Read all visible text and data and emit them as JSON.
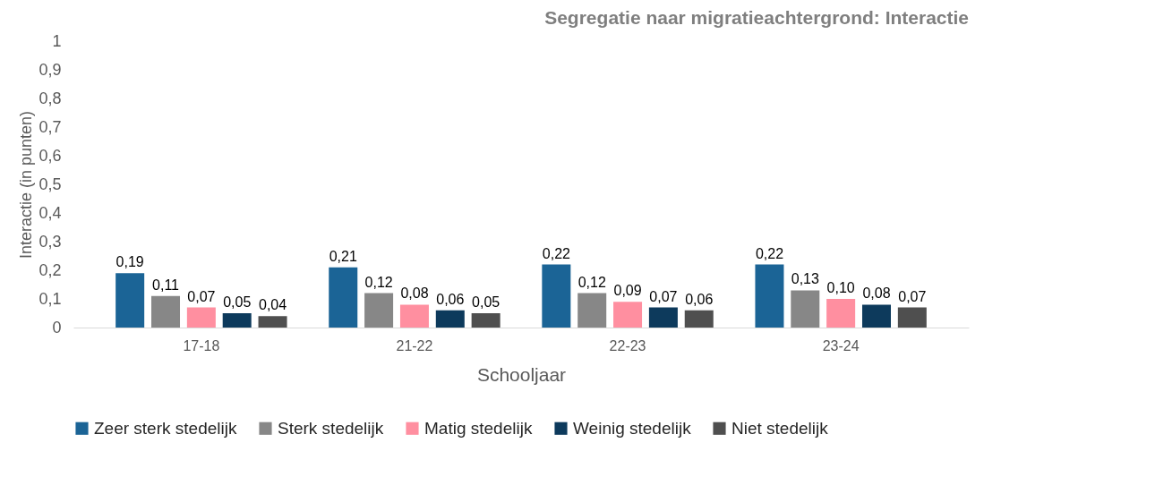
{
  "chart_data": {
    "type": "bar",
    "title": "Segregatie naar migratieachtergrond: Interactie",
    "xlabel": "Schooljaar",
    "ylabel": "Interactie (in punten)",
    "categories": [
      "17-18",
      "21-22",
      "22-23",
      "23-24"
    ],
    "series": [
      {
        "name": "Zeer sterk stedelijk",
        "color": "#1b6496",
        "values": [
          0.19,
          0.21,
          0.22,
          0.22
        ],
        "value_labels": [
          "0,19",
          "0,21",
          "0,22",
          "0,22"
        ]
      },
      {
        "name": "Sterk stedelijk",
        "color": "#878787",
        "values": [
          0.11,
          0.12,
          0.12,
          0.13
        ],
        "value_labels": [
          "0,11",
          "0,12",
          "0,12",
          "0,13"
        ]
      },
      {
        "name": "Matig stedelijk",
        "color": "#ff8fa0",
        "values": [
          0.07,
          0.08,
          0.09,
          0.1
        ],
        "value_labels": [
          "0,07",
          "0,08",
          "0,09",
          "0,10"
        ]
      },
      {
        "name": "Weinig stedelijk",
        "color": "#0d3a5c",
        "values": [
          0.05,
          0.06,
          0.07,
          0.08
        ],
        "value_labels": [
          "0,05",
          "0,06",
          "0,07",
          "0,08"
        ]
      },
      {
        "name": "Niet stedelijk",
        "color": "#4f4f4f",
        "values": [
          0.04,
          0.05,
          0.06,
          0.07
        ],
        "value_labels": [
          "0,04",
          "0,05",
          "0,06",
          "0,07"
        ]
      }
    ],
    "ylim": [
      0,
      1
    ],
    "yticks": [
      0,
      {
        "value": 0.1,
        "label": "0,1"
      },
      {
        "value": 0.2,
        "label": "0,2"
      },
      {
        "value": 0.3,
        "label": "0,3"
      },
      {
        "value": 0.4,
        "label": "0,4"
      },
      {
        "value": 0.5,
        "label": "0,5"
      },
      {
        "value": 0.6,
        "label": "0,6"
      },
      {
        "value": 0.7,
        "label": "0,7"
      },
      {
        "value": 0.8,
        "label": "0,8"
      },
      {
        "value": 0.9,
        "label": "0,9"
      },
      1
    ],
    "grid": false,
    "legend": "bottom"
  }
}
